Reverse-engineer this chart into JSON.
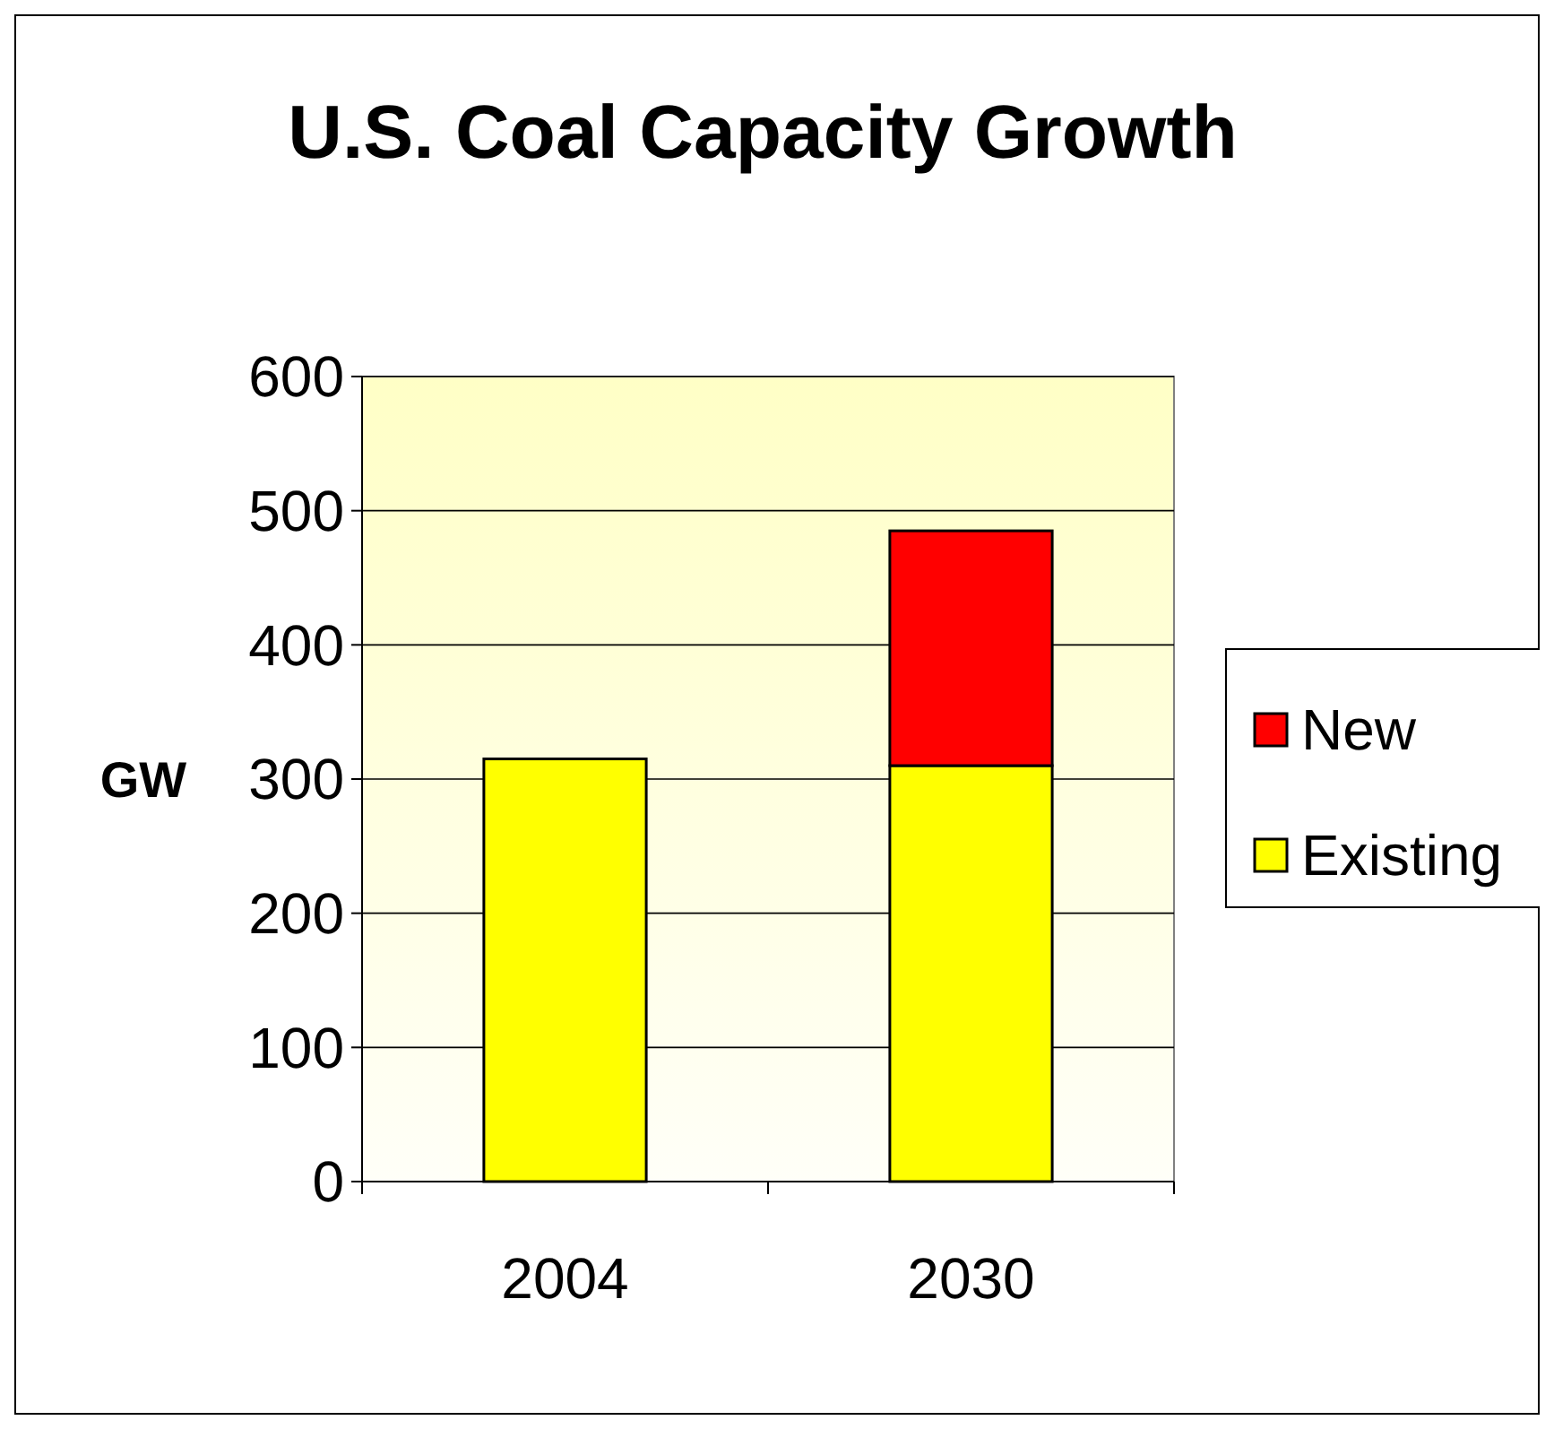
{
  "chart_data": {
    "type": "bar",
    "title": "U.S. Coal Capacity Growth",
    "ylabel": "GW",
    "categories": [
      "2004",
      "2030"
    ],
    "stacked": true,
    "series": [
      {
        "name": "Existing",
        "color": "#ffff00",
        "values": [
          315,
          310
        ]
      },
      {
        "name": "New",
        "color": "#ff0000",
        "values": [
          null,
          175
        ]
      }
    ],
    "ylim": [
      0,
      600
    ],
    "yticks": [
      0,
      100,
      200,
      300,
      400,
      500,
      600
    ],
    "grid": "y",
    "legend": "right"
  }
}
